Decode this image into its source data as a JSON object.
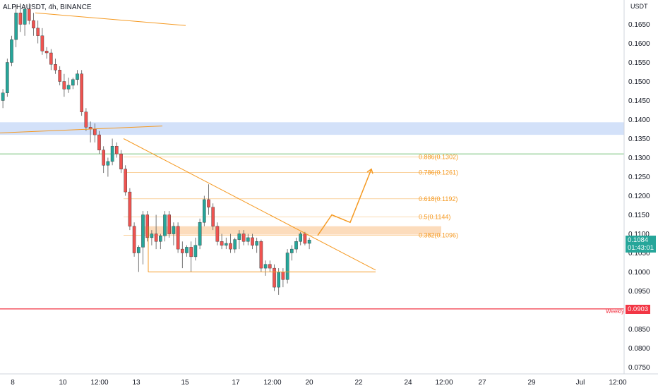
{
  "symbol": {
    "title": "ALPHAUSDT, 4h, BINANCE"
  },
  "axis": {
    "currency": "USDT",
    "price_ticks": [
      "0.1650",
      "0.1600",
      "0.1550",
      "0.1500",
      "0.1450",
      "0.1400",
      "0.1350",
      "0.1300",
      "0.1250",
      "0.1200",
      "0.1150",
      "0.1100",
      "0.1050",
      "0.1000",
      "0.0950",
      "0.0900",
      "0.0850",
      "0.0800",
      "0.0750"
    ],
    "time_ticks": [
      "8",
      "10",
      "12:00",
      "13",
      "15",
      "17",
      "12:00",
      "20",
      "22",
      "24",
      "12:00",
      "27",
      "29",
      "Jul",
      "12:00"
    ]
  },
  "price_tag": {
    "value": "0.1084",
    "countdown": "01:43:01",
    "color": "#26a69a"
  },
  "weekly_tag": {
    "value": "0.0903",
    "label": "Weekly",
    "color": "#f23645"
  },
  "fib_labels": [
    "0.886(0.1302)",
    "0.786(0.1261)",
    "0.618(0.1192)",
    "0.5(0.1144)",
    "0.382(0.1096)"
  ],
  "colors": {
    "up": "#26a69a",
    "down": "#ef5350",
    "trend": "#f59a23",
    "zone_blue": "#c8daf7",
    "zone_orange": "#fcd6b0",
    "weekly_line": "#f23645",
    "green_line": "#4caf50"
  },
  "chart_data": {
    "type": "candlestick",
    "title": "ALPHAUSDT, 4h, BINANCE",
    "ylabel": "USDT",
    "ylim": [
      0.0725,
      0.171
    ],
    "xlabels": [
      "8",
      "10",
      "12:00",
      "13",
      "15",
      "17",
      "12:00",
      "20",
      "22",
      "24",
      "12:00",
      "27",
      "29",
      "Jul",
      "12:00"
    ],
    "candles": [
      {
        "o": 0.145,
        "h": 0.148,
        "l": 0.143,
        "c": 0.147
      },
      {
        "o": 0.147,
        "h": 0.156,
        "l": 0.146,
        "c": 0.155
      },
      {
        "o": 0.155,
        "h": 0.162,
        "l": 0.154,
        "c": 0.161
      },
      {
        "o": 0.161,
        "h": 0.17,
        "l": 0.159,
        "c": 0.168
      },
      {
        "o": 0.168,
        "h": 0.1705,
        "l": 0.163,
        "c": 0.165
      },
      {
        "o": 0.165,
        "h": 0.17,
        "l": 0.162,
        "c": 0.169
      },
      {
        "o": 0.169,
        "h": 0.1705,
        "l": 0.165,
        "c": 0.166
      },
      {
        "o": 0.166,
        "h": 0.168,
        "l": 0.162,
        "c": 0.164
      },
      {
        "o": 0.164,
        "h": 0.166,
        "l": 0.16,
        "c": 0.162
      },
      {
        "o": 0.162,
        "h": 0.164,
        "l": 0.157,
        "c": 0.158
      },
      {
        "o": 0.158,
        "h": 0.159,
        "l": 0.156,
        "c": 0.1575
      },
      {
        "o": 0.1575,
        "h": 0.1585,
        "l": 0.153,
        "c": 0.1545
      },
      {
        "o": 0.1545,
        "h": 0.156,
        "l": 0.152,
        "c": 0.153
      },
      {
        "o": 0.153,
        "h": 0.154,
        "l": 0.149,
        "c": 0.15
      },
      {
        "o": 0.15,
        "h": 0.152,
        "l": 0.146,
        "c": 0.148
      },
      {
        "o": 0.148,
        "h": 0.151,
        "l": 0.147,
        "c": 0.149
      },
      {
        "o": 0.149,
        "h": 0.151,
        "l": 0.148,
        "c": 0.1505
      },
      {
        "o": 0.1505,
        "h": 0.153,
        "l": 0.149,
        "c": 0.152
      },
      {
        "o": 0.152,
        "h": 0.153,
        "l": 0.141,
        "c": 0.142
      },
      {
        "o": 0.142,
        "h": 0.143,
        "l": 0.137,
        "c": 0.138
      },
      {
        "o": 0.138,
        "h": 0.1395,
        "l": 0.134,
        "c": 0.1375
      },
      {
        "o": 0.1375,
        "h": 0.139,
        "l": 0.134,
        "c": 0.136
      },
      {
        "o": 0.136,
        "h": 0.137,
        "l": 0.131,
        "c": 0.132
      },
      {
        "o": 0.132,
        "h": 0.133,
        "l": 0.126,
        "c": 0.128
      },
      {
        "o": 0.128,
        "h": 0.13,
        "l": 0.125,
        "c": 0.129
      },
      {
        "o": 0.129,
        "h": 0.135,
        "l": 0.128,
        "c": 0.133
      },
      {
        "o": 0.133,
        "h": 0.134,
        "l": 0.13,
        "c": 0.131
      },
      {
        "o": 0.131,
        "h": 0.132,
        "l": 0.126,
        "c": 0.127
      },
      {
        "o": 0.127,
        "h": 0.128,
        "l": 0.12,
        "c": 0.121
      },
      {
        "o": 0.121,
        "h": 0.122,
        "l": 0.111,
        "c": 0.112
      },
      {
        "o": 0.112,
        "h": 0.113,
        "l": 0.104,
        "c": 0.105
      },
      {
        "o": 0.105,
        "h": 0.107,
        "l": 0.1,
        "c": 0.1065
      },
      {
        "o": 0.1065,
        "h": 0.116,
        "l": 0.102,
        "c": 0.115
      },
      {
        "o": 0.115,
        "h": 0.116,
        "l": 0.108,
        "c": 0.109
      },
      {
        "o": 0.109,
        "h": 0.111,
        "l": 0.107,
        "c": 0.11
      },
      {
        "o": 0.11,
        "h": 0.115,
        "l": 0.106,
        "c": 0.108
      },
      {
        "o": 0.108,
        "h": 0.11,
        "l": 0.106,
        "c": 0.1095
      },
      {
        "o": 0.1095,
        "h": 0.116,
        "l": 0.108,
        "c": 0.115
      },
      {
        "o": 0.115,
        "h": 0.116,
        "l": 0.109,
        "c": 0.11
      },
      {
        "o": 0.11,
        "h": 0.113,
        "l": 0.107,
        "c": 0.112
      },
      {
        "o": 0.112,
        "h": 0.113,
        "l": 0.105,
        "c": 0.106
      },
      {
        "o": 0.106,
        "h": 0.108,
        "l": 0.101,
        "c": 0.105
      },
      {
        "o": 0.105,
        "h": 0.107,
        "l": 0.104,
        "c": 0.1065
      },
      {
        "o": 0.1065,
        "h": 0.108,
        "l": 0.1,
        "c": 0.104
      },
      {
        "o": 0.104,
        "h": 0.109,
        "l": 0.103,
        "c": 0.107
      },
      {
        "o": 0.107,
        "h": 0.114,
        "l": 0.106,
        "c": 0.113
      },
      {
        "o": 0.113,
        "h": 0.12,
        "l": 0.112,
        "c": 0.119
      },
      {
        "o": 0.119,
        "h": 0.123,
        "l": 0.115,
        "c": 0.117
      },
      {
        "o": 0.117,
        "h": 0.118,
        "l": 0.111,
        "c": 0.112
      },
      {
        "o": 0.112,
        "h": 0.113,
        "l": 0.107,
        "c": 0.108
      },
      {
        "o": 0.108,
        "h": 0.11,
        "l": 0.106,
        "c": 0.107
      },
      {
        "o": 0.107,
        "h": 0.109,
        "l": 0.106,
        "c": 0.1075
      },
      {
        "o": 0.1075,
        "h": 0.11,
        "l": 0.105,
        "c": 0.106
      },
      {
        "o": 0.106,
        "h": 0.109,
        "l": 0.105,
        "c": 0.1085
      },
      {
        "o": 0.1085,
        "h": 0.111,
        "l": 0.106,
        "c": 0.11
      },
      {
        "o": 0.11,
        "h": 0.111,
        "l": 0.107,
        "c": 0.108
      },
      {
        "o": 0.108,
        "h": 0.11,
        "l": 0.107,
        "c": 0.109
      },
      {
        "o": 0.109,
        "h": 0.11,
        "l": 0.106,
        "c": 0.107
      },
      {
        "o": 0.107,
        "h": 0.109,
        "l": 0.105,
        "c": 0.108
      },
      {
        "o": 0.108,
        "h": 0.1085,
        "l": 0.1,
        "c": 0.101
      },
      {
        "o": 0.101,
        "h": 0.103,
        "l": 0.099,
        "c": 0.102
      },
      {
        "o": 0.102,
        "h": 0.103,
        "l": 0.1,
        "c": 0.101
      },
      {
        "o": 0.101,
        "h": 0.102,
        "l": 0.095,
        "c": 0.096
      },
      {
        "o": 0.096,
        "h": 0.101,
        "l": 0.094,
        "c": 0.1
      },
      {
        "o": 0.1,
        "h": 0.101,
        "l": 0.096,
        "c": 0.098
      },
      {
        "o": 0.098,
        "h": 0.106,
        "l": 0.097,
        "c": 0.105
      },
      {
        "o": 0.105,
        "h": 0.107,
        "l": 0.103,
        "c": 0.106
      },
      {
        "o": 0.106,
        "h": 0.109,
        "l": 0.105,
        "c": 0.108
      },
      {
        "o": 0.108,
        "h": 0.1105,
        "l": 0.107,
        "c": 0.11
      },
      {
        "o": 0.11,
        "h": 0.1105,
        "l": 0.107,
        "c": 0.1075
      },
      {
        "o": 0.1075,
        "h": 0.109,
        "l": 0.106,
        "c": 0.1084
      }
    ],
    "fib_levels": [
      0.1302,
      0.1261,
      0.1192,
      0.1144,
      0.1096
    ],
    "supply_zone": [
      0.136,
      0.1393
    ],
    "demand_zone": [
      0.1098,
      0.112
    ],
    "horizontal_lines": {
      "weekly": 0.0903,
      "green": 0.131,
      "support": 0.1
    },
    "projection_path": [
      0.1096,
      0.115,
      0.113,
      0.127
    ]
  }
}
